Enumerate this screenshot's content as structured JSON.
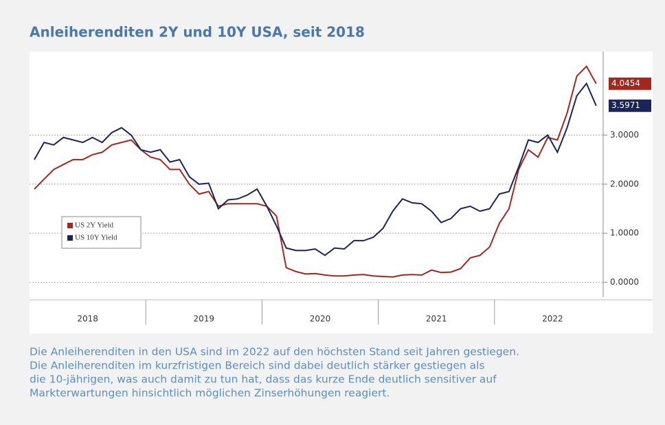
{
  "chart_data": {
    "type": "line",
    "title": "Anleiherenditen 2Y und 10Y USA, seit 2018",
    "xlabels": [
      "2018",
      "2019",
      "2020",
      "2021",
      "2022"
    ],
    "series": [
      {
        "name": "US 2Y Yield",
        "color": "#a0281e",
        "values": [
          1.9,
          2.1,
          2.3,
          2.4,
          2.5,
          2.5,
          2.6,
          2.65,
          2.8,
          2.85,
          2.9,
          2.7,
          2.55,
          2.5,
          2.3,
          2.3,
          2.0,
          1.8,
          1.85,
          1.55,
          1.6,
          1.6,
          1.6,
          1.6,
          1.55,
          1.35,
          0.3,
          0.22,
          0.17,
          0.18,
          0.15,
          0.13,
          0.13,
          0.15,
          0.16,
          0.13,
          0.12,
          0.11,
          0.15,
          0.16,
          0.15,
          0.25,
          0.2,
          0.21,
          0.28,
          0.5,
          0.55,
          0.72,
          1.2,
          1.5,
          2.3,
          2.7,
          2.55,
          2.95,
          2.9,
          3.45,
          4.2,
          4.4,
          4.0454
        ]
      },
      {
        "name": "US 10Y Yield",
        "color": "#1c2359",
        "values": [
          2.5,
          2.85,
          2.8,
          2.95,
          2.9,
          2.85,
          2.95,
          2.85,
          3.05,
          3.15,
          3.0,
          2.7,
          2.65,
          2.7,
          2.45,
          2.5,
          2.15,
          2.0,
          2.02,
          1.5,
          1.68,
          1.7,
          1.78,
          1.9,
          1.55,
          1.15,
          0.7,
          0.65,
          0.65,
          0.68,
          0.55,
          0.7,
          0.68,
          0.85,
          0.85,
          0.92,
          1.1,
          1.45,
          1.7,
          1.62,
          1.6,
          1.45,
          1.22,
          1.3,
          1.5,
          1.55,
          1.45,
          1.5,
          1.8,
          1.85,
          2.35,
          2.9,
          2.85,
          3.0,
          2.65,
          3.15,
          3.8,
          4.05,
          3.5971
        ]
      }
    ],
    "ylim": [
      -0.3,
      4.7
    ],
    "yticks": [
      {
        "value": 0,
        "label": "0.0000"
      },
      {
        "value": 1,
        "label": "1.0000"
      },
      {
        "value": 2,
        "label": "2.0000"
      },
      {
        "value": 3,
        "label": "3.0000"
      }
    ],
    "grid": true,
    "legend": "left",
    "caption": [
      "Die Anleiherenditen in den USA sind im 2022 auf den höchsten Stand seit Jahren gestiegen.",
      "Die Anleiherenditen im kurzfristigen Bereich sind dabei deutlich stärker gestiegen als",
      "die 10-jährigen, was auch damit zu tun hat, dass das kurze Ende deutlich sensitiver auf",
      "Markterwartungen hinsichtlich möglichen Zinserhöhungen reagiert."
    ]
  }
}
